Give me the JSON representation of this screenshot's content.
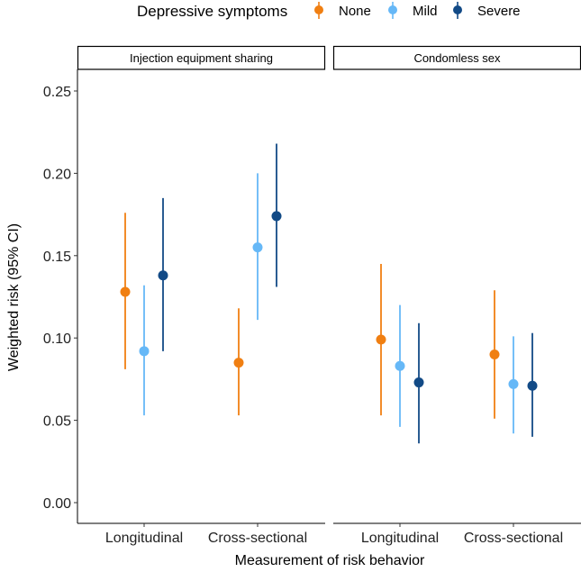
{
  "chart_data": {
    "type": "scatter",
    "subtype": "pointrange",
    "xlabel": "Measurement of risk behavior",
    "ylabel": "Weighted risk (95% CI)",
    "ylim": [
      -0.012,
      0.265
    ],
    "yticks": [
      "0.00",
      "0.05",
      "0.10",
      "0.15",
      "0.20",
      "0.25"
    ],
    "ytick_values": [
      0,
      0.05,
      0.1,
      0.15,
      0.2,
      0.25
    ],
    "grid": false,
    "legend": {
      "title": "Depressive symptoms",
      "placement": "top",
      "entries": [
        {
          "name": "None",
          "color": "#F07F12"
        },
        {
          "name": "Mild",
          "color": "#66B8F7"
        },
        {
          "name": "Severe",
          "color": "#124A86"
        }
      ]
    },
    "categories": [
      "Longitudinal",
      "Cross-sectional"
    ],
    "panels": [
      {
        "title": "Injection equipment sharing",
        "series": [
          {
            "name": "None",
            "values": [
              0.128,
              0.085
            ],
            "lower": [
              0.081,
              0.053
            ],
            "upper": [
              0.176,
              0.118
            ]
          },
          {
            "name": "Mild",
            "values": [
              0.092,
              0.155
            ],
            "lower": [
              0.053,
              0.111
            ],
            "upper": [
              0.132,
              0.2
            ]
          },
          {
            "name": "Severe",
            "values": [
              0.138,
              0.174
            ],
            "lower": [
              0.092,
              0.131
            ],
            "upper": [
              0.185,
              0.218
            ]
          }
        ]
      },
      {
        "title": "Condomless sex",
        "series": [
          {
            "name": "None",
            "values": [
              0.099,
              0.09
            ],
            "lower": [
              0.053,
              0.051
            ],
            "upper": [
              0.145,
              0.129
            ]
          },
          {
            "name": "Mild",
            "values": [
              0.083,
              0.072
            ],
            "lower": [
              0.046,
              0.042
            ],
            "upper": [
              0.12,
              0.101
            ]
          },
          {
            "name": "Severe",
            "values": [
              0.073,
              0.071
            ],
            "lower": [
              0.036,
              0.04
            ],
            "upper": [
              0.109,
              0.103
            ]
          }
        ]
      }
    ]
  }
}
